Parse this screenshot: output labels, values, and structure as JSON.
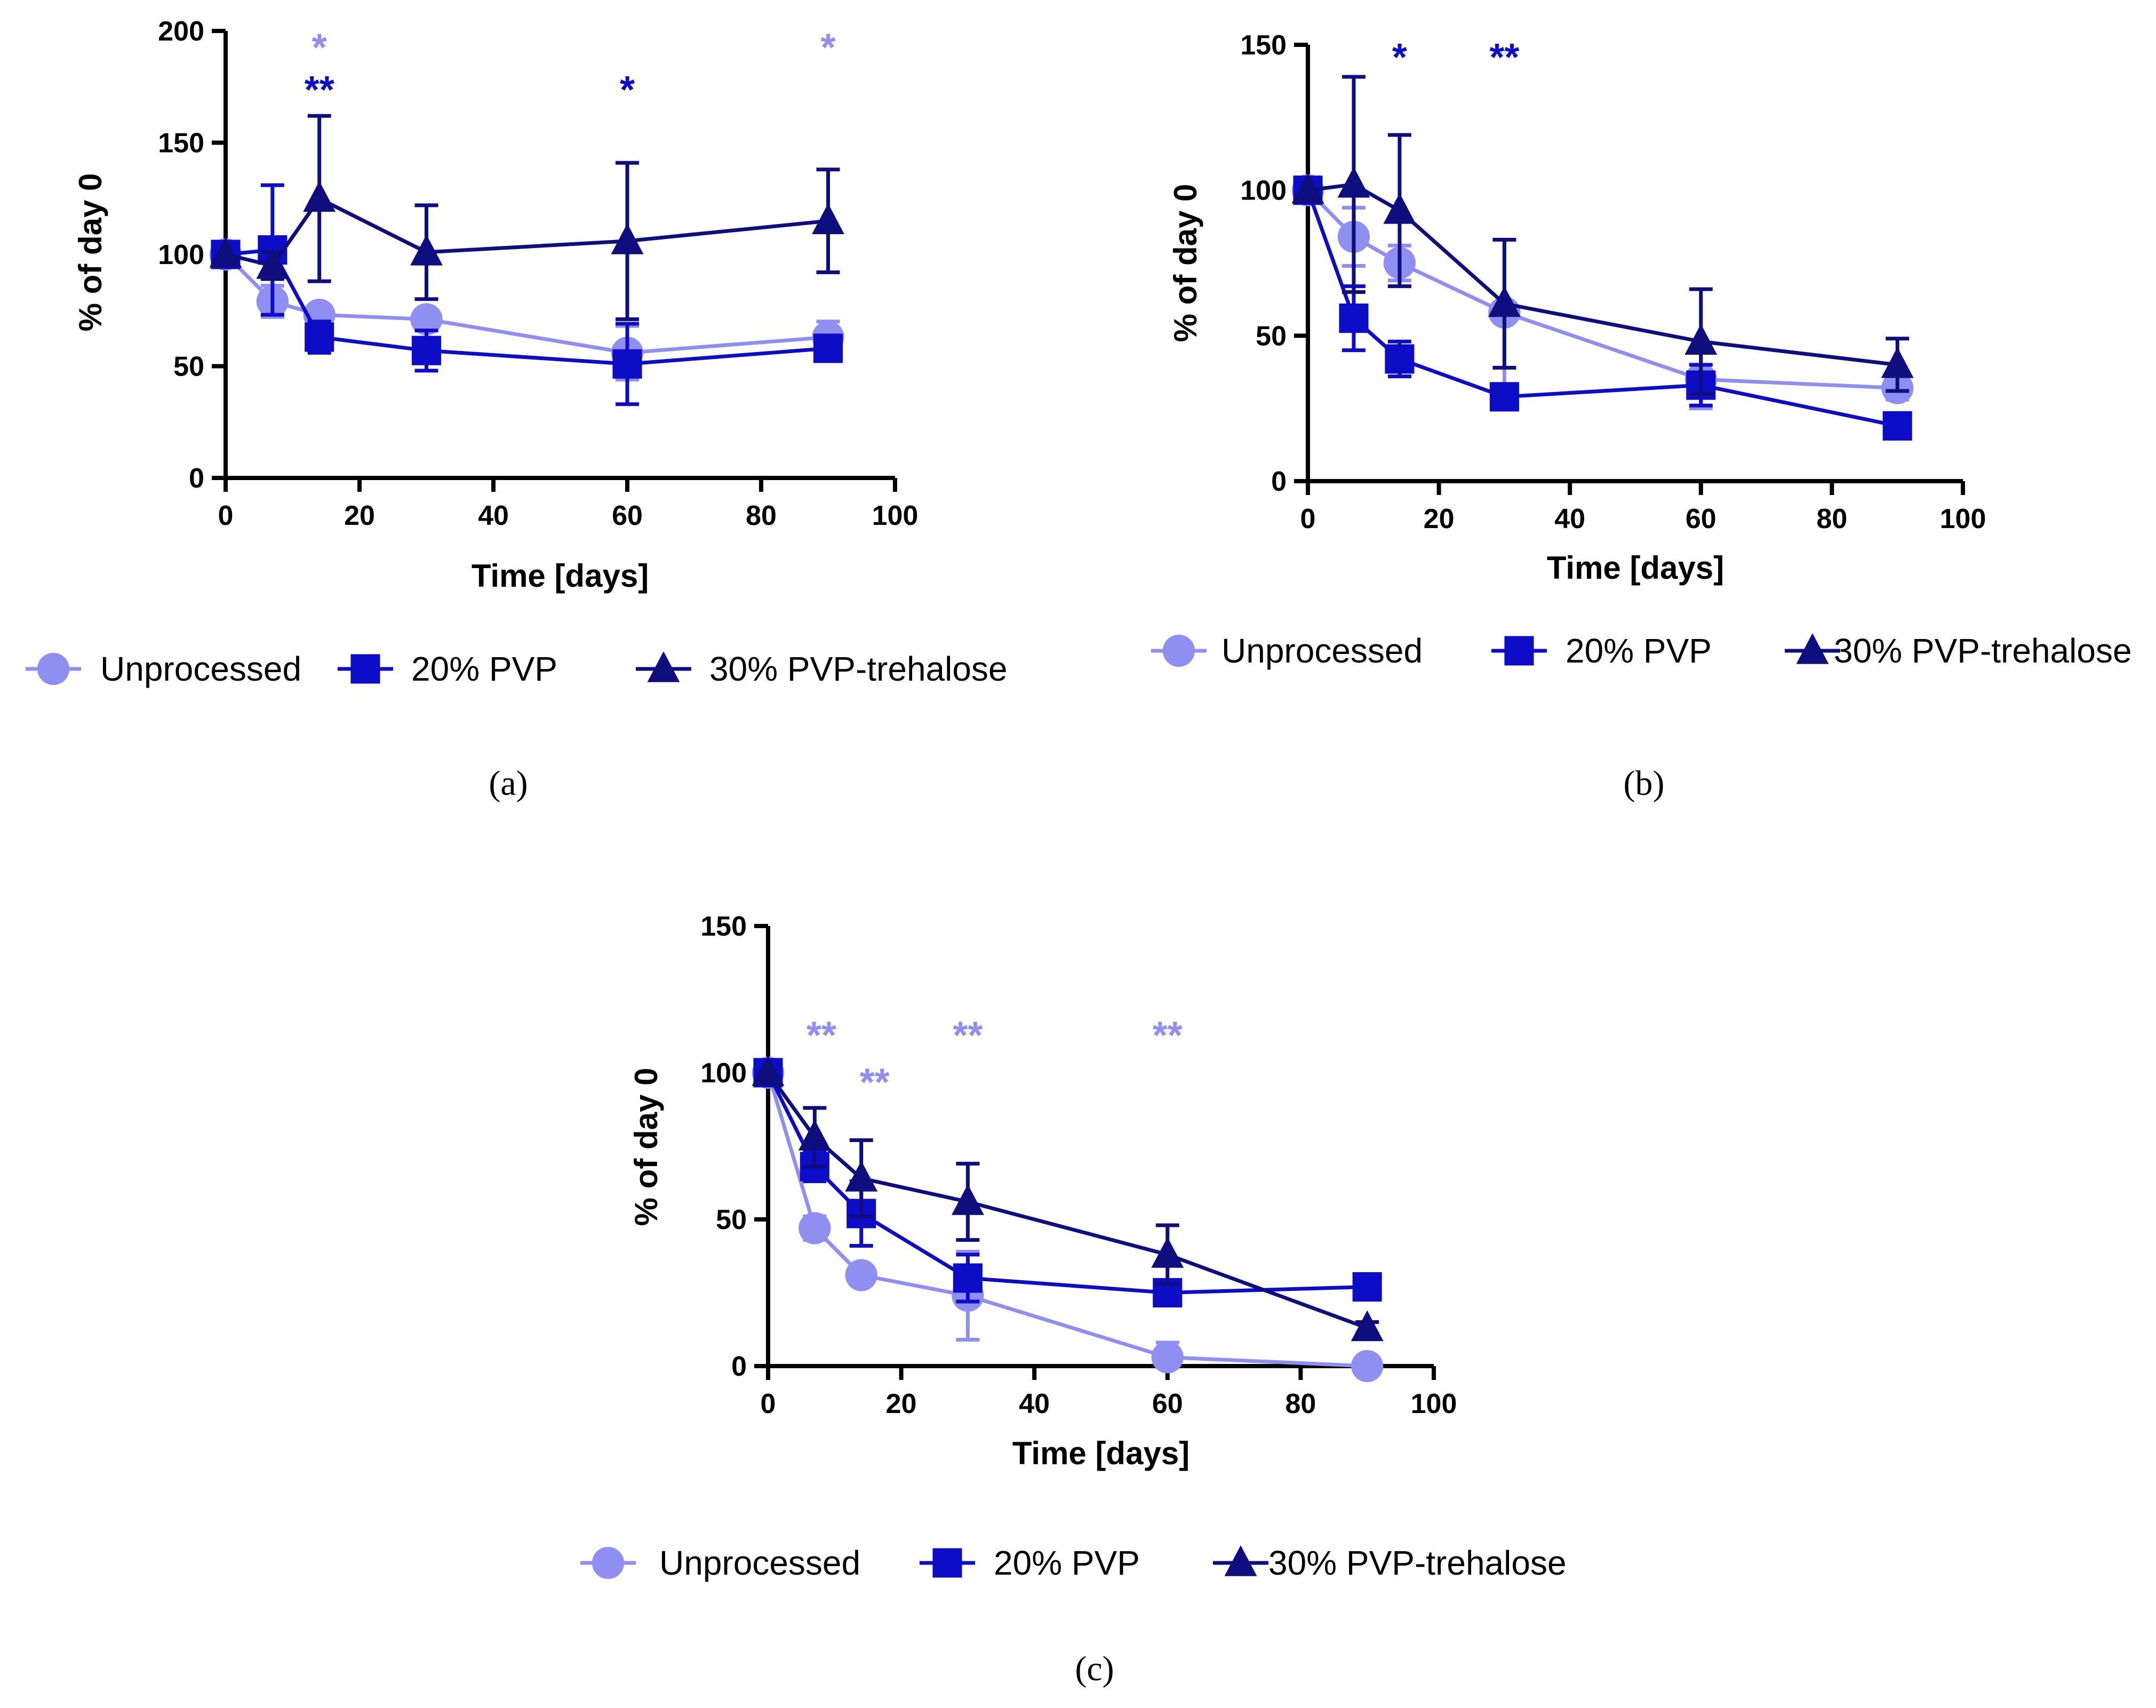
{
  "colors": {
    "unprocessed": "#8f8ff2",
    "pvp20": "#0d0dc7",
    "pvp30_trehalose": "#0e0e7e"
  },
  "chart_data": [
    {
      "panel": "(a)",
      "type": "line",
      "xlabel": "Time [days]",
      "ylabel": "% of day 0",
      "xlim": [
        0,
        100
      ],
      "ylim": [
        0,
        200
      ],
      "xticks": [
        "0",
        "20",
        "40",
        "60",
        "80",
        "100"
      ],
      "yticks": [
        "0",
        "50",
        "100",
        "150",
        "200"
      ],
      "legend_position": "bottom",
      "series": [
        {
          "key": "unprocessed",
          "name": "Unprocessed",
          "marker": "circle",
          "x": [
            0,
            7,
            14,
            30,
            60,
            90
          ],
          "y": [
            100,
            79,
            73,
            71,
            56,
            63
          ],
          "err": [
            0,
            7,
            3,
            3,
            12,
            7
          ]
        },
        {
          "key": "pvp20",
          "name": "20% PVP",
          "marker": "square",
          "x": [
            0,
            7,
            14,
            30,
            60,
            90
          ],
          "y": [
            100,
            102,
            63,
            57,
            51,
            58
          ],
          "err": [
            0,
            29,
            7,
            9,
            18,
            4
          ]
        },
        {
          "key": "pvp30_trehalose",
          "name": "30% PVP-trehalose",
          "marker": "triangle",
          "x": [
            0,
            7,
            14,
            30,
            60,
            90
          ],
          "y": [
            100,
            95,
            125,
            101,
            106,
            115
          ],
          "err": [
            0,
            6,
            37,
            21,
            35,
            23
          ]
        }
      ],
      "annotations": [
        {
          "text": "*",
          "x": 14,
          "y": 193,
          "color_key": "unprocessed"
        },
        {
          "text": "**",
          "x": 14,
          "y": 174,
          "color_key": "pvp20"
        },
        {
          "text": "*",
          "x": 60,
          "y": 174,
          "color_key": "pvp20"
        },
        {
          "text": "*",
          "x": 90,
          "y": 193,
          "color_key": "unprocessed"
        }
      ]
    },
    {
      "panel": "(b)",
      "type": "line",
      "xlabel": "Time [days]",
      "ylabel": "% of day 0",
      "xlim": [
        0,
        100
      ],
      "ylim": [
        0,
        150
      ],
      "xticks": [
        "0",
        "20",
        "40",
        "60",
        "80",
        "100"
      ],
      "yticks": [
        "0",
        "50",
        "100",
        "150"
      ],
      "legend_position": "bottom",
      "series": [
        {
          "key": "unprocessed",
          "name": "Unprocessed",
          "marker": "circle",
          "x": [
            0,
            7,
            14,
            30,
            60,
            90
          ],
          "y": [
            100,
            84,
            75,
            58,
            35,
            32
          ],
          "err": [
            0,
            10,
            6,
            25,
            10,
            4
          ]
        },
        {
          "key": "pvp20",
          "name": "20% PVP",
          "marker": "square",
          "x": [
            0,
            7,
            14,
            30,
            60,
            90
          ],
          "y": [
            100,
            56,
            42,
            29,
            33,
            19
          ],
          "err": [
            0,
            11,
            6,
            2,
            7,
            2
          ]
        },
        {
          "key": "pvp30_trehalose",
          "name": "30% PVP-trehalose",
          "marker": "triangle",
          "x": [
            0,
            7,
            14,
            30,
            60,
            90
          ],
          "y": [
            100,
            102,
            93,
            61,
            48,
            40
          ],
          "err": [
            0,
            37,
            26,
            22,
            18,
            9
          ]
        }
      ],
      "annotations": [
        {
          "text": "*",
          "x": 14,
          "y": 146,
          "color_key": "pvp20"
        },
        {
          "text": "**",
          "x": 30,
          "y": 146,
          "color_key": "pvp20"
        }
      ]
    },
    {
      "panel": "(c)",
      "type": "line",
      "xlabel": "Time [days]",
      "ylabel": "% of day 0",
      "xlim": [
        0,
        100
      ],
      "ylim": [
        0,
        150
      ],
      "xticks": [
        "0",
        "20",
        "40",
        "60",
        "80",
        "100"
      ],
      "yticks": [
        "0",
        "50",
        "100",
        "150"
      ],
      "legend_position": "bottom",
      "series": [
        {
          "key": "unprocessed",
          "name": "Unprocessed",
          "marker": "circle",
          "x": [
            0,
            7,
            14,
            30,
            60,
            90
          ],
          "y": [
            100,
            47,
            31,
            24,
            3,
            0
          ],
          "err": [
            0,
            4,
            2,
            15,
            5,
            0
          ]
        },
        {
          "key": "pvp20",
          "name": "20% PVP",
          "marker": "square",
          "x": [
            0,
            7,
            14,
            30,
            60,
            90
          ],
          "y": [
            100,
            68,
            52,
            30,
            25,
            27
          ],
          "err": [
            0,
            5,
            11,
            8,
            3,
            2
          ]
        },
        {
          "key": "pvp30_trehalose",
          "name": "30% PVP-trehalose",
          "marker": "triangle",
          "x": [
            0,
            7,
            14,
            30,
            60,
            90
          ],
          "y": [
            100,
            78,
            64,
            56,
            38,
            13
          ],
          "err": [
            0,
            10,
            13,
            13,
            10,
            2
          ]
        }
      ],
      "annotations": [
        {
          "text": "**",
          "x": 8,
          "y": 113,
          "color_key": "unprocessed"
        },
        {
          "text": "**",
          "x": 16,
          "y": 97,
          "color_key": "unprocessed"
        },
        {
          "text": "**",
          "x": 30,
          "y": 113,
          "color_key": "unprocessed"
        },
        {
          "text": "**",
          "x": 60,
          "y": 113,
          "color_key": "unprocessed"
        }
      ]
    }
  ]
}
